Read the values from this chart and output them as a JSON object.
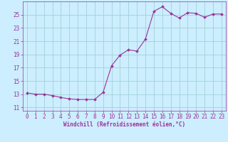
{
  "x": [
    0,
    1,
    2,
    3,
    4,
    5,
    6,
    7,
    8,
    9,
    10,
    11,
    12,
    13,
    14,
    15,
    16,
    17,
    18,
    19,
    20,
    21,
    22,
    23
  ],
  "y": [
    13.2,
    13.0,
    13.0,
    12.8,
    12.5,
    12.3,
    12.2,
    12.2,
    12.2,
    13.3,
    17.3,
    18.9,
    19.7,
    19.5,
    21.3,
    25.5,
    26.2,
    25.2,
    24.5,
    25.3,
    25.2,
    24.6,
    25.1,
    25.1
  ],
  "line_color": "#993399",
  "marker": "D",
  "marker_size": 2.0,
  "bg_color": "#cceeff",
  "grid_color": "#99cccc",
  "tick_color": "#993399",
  "xlabel": "Windchill (Refroidissement éolien,°C)",
  "xlabel_color": "#993399",
  "xticks": [
    0,
    1,
    2,
    3,
    4,
    5,
    6,
    7,
    8,
    9,
    10,
    11,
    12,
    13,
    14,
    15,
    16,
    17,
    18,
    19,
    20,
    21,
    22,
    23
  ],
  "yticks": [
    11,
    13,
    15,
    17,
    19,
    21,
    23,
    25
  ],
  "ylim": [
    10.5,
    27.0
  ],
  "xlim": [
    -0.5,
    23.5
  ],
  "font_size_xlabel": 5.5,
  "font_size_tick": 5.5
}
